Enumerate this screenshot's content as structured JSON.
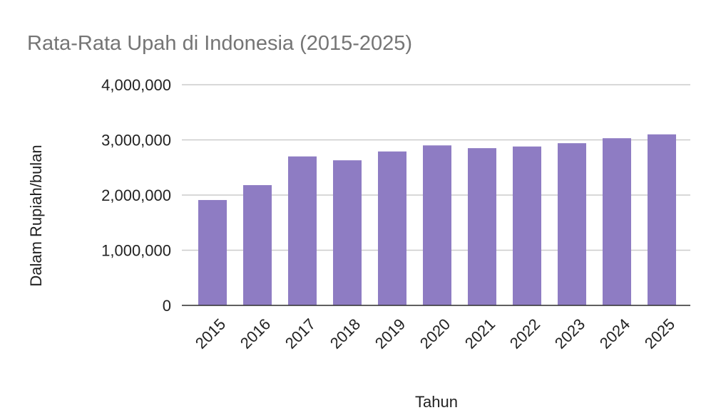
{
  "chart_data": {
    "type": "bar",
    "title": "Rata-Rata Upah di Indonesia (2015-2025)",
    "x_label": "Tahun",
    "y_label": "Dalam Rupiah/bulan",
    "categories": [
      "2015",
      "2016",
      "2017",
      "2018",
      "2019",
      "2020",
      "2021",
      "2022",
      "2023",
      "2024",
      "2025"
    ],
    "values": [
      1910000,
      2180000,
      2700000,
      2630000,
      2790000,
      2900000,
      2850000,
      2880000,
      2940000,
      3030000,
      3100000
    ],
    "color": "#8e7cc3",
    "ylim": [
      0,
      4000000
    ],
    "yticks": [
      0,
      {
        "value": 1000000,
        "label": "1,000,000"
      },
      {
        "value": 2000000,
        "label": "2,000,000"
      },
      {
        "value": 3000000,
        "label": "3,000,000"
      },
      {
        "value": 4000000,
        "label": "4,000,000"
      }
    ],
    "grid": true
  }
}
